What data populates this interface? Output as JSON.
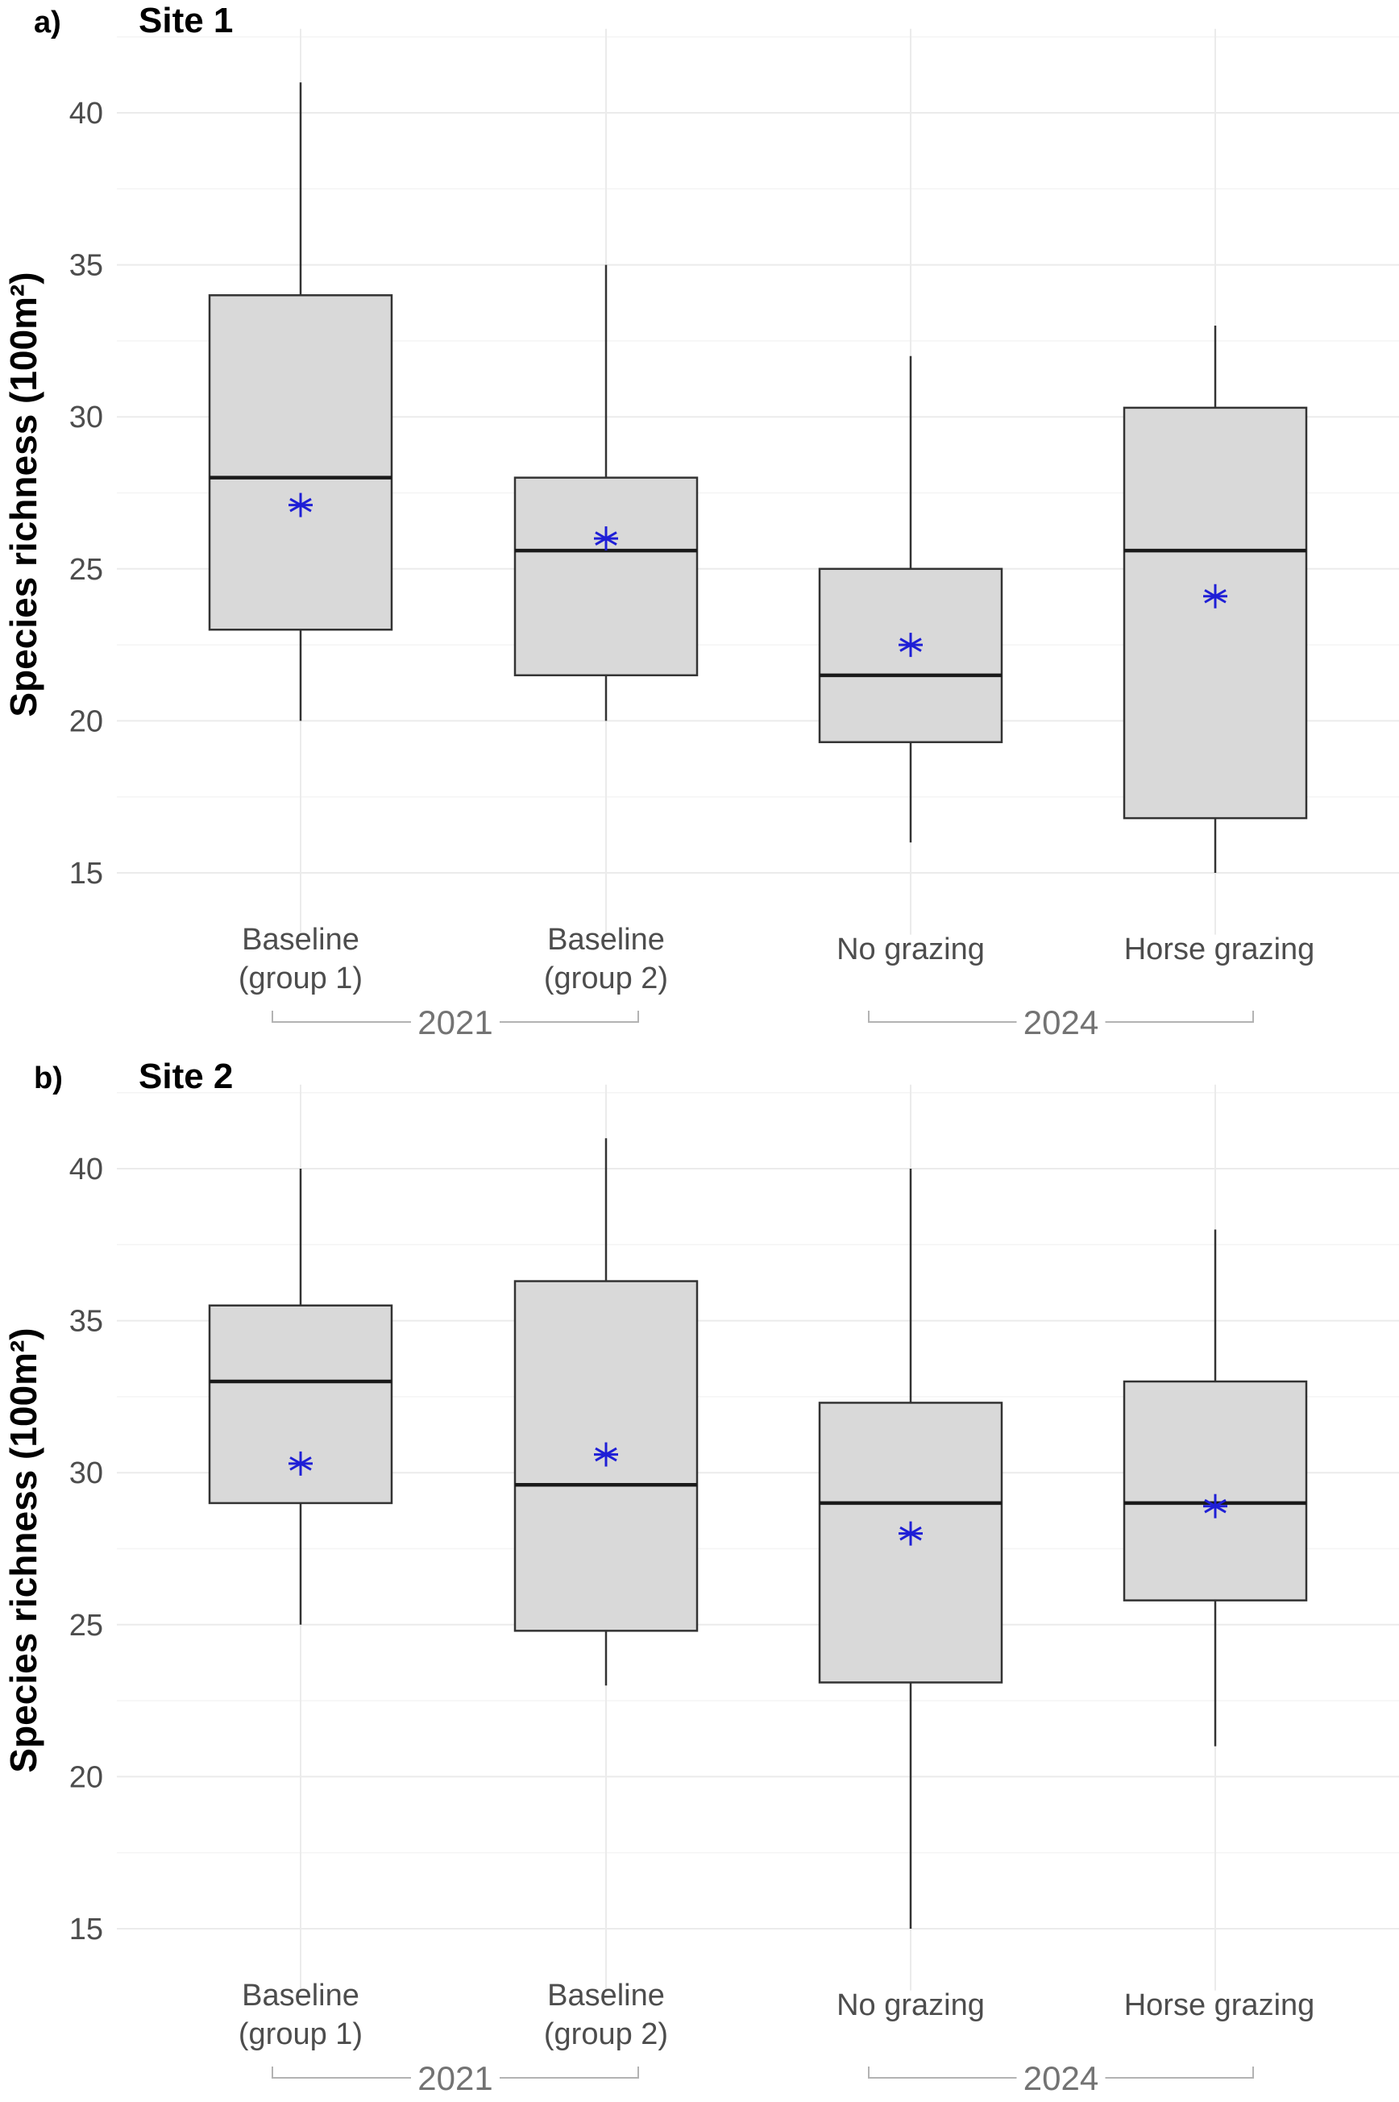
{
  "chart_data": [
    {
      "type": "box",
      "panel_label": "a)",
      "title": "Site 1",
      "ylabel": "Species richness (100m²)",
      "xlabel": "",
      "ylim": [
        13.5,
        42.5
      ],
      "yticks": [
        15,
        20,
        25,
        30,
        35,
        40
      ],
      "categories": [
        {
          "line1": "Baseline",
          "line2": "(group 1)"
        },
        {
          "line1": "Baseline",
          "line2": "(group 2)"
        },
        {
          "line1": "No grazing",
          "line2": ""
        },
        {
          "line1": "Horse grazing",
          "line2": ""
        }
      ],
      "groups": [
        {
          "label": "2021",
          "from": 0,
          "to": 1
        },
        {
          "label": "2024",
          "from": 2,
          "to": 3
        }
      ],
      "boxes": [
        {
          "min": 20,
          "q1": 23,
          "median": 28,
          "q3": 34,
          "max": 41,
          "mean": 27.1
        },
        {
          "min": 20,
          "q1": 21.5,
          "median": 25.6,
          "q3": 28,
          "max": 35,
          "mean": 26.0
        },
        {
          "min": 16,
          "q1": 19.3,
          "median": 21.5,
          "q3": 25,
          "max": 32,
          "mean": 22.5
        },
        {
          "min": 15,
          "q1": 16.8,
          "median": 25.6,
          "q3": 30.3,
          "max": 33,
          "mean": 24.1
        }
      ],
      "mean_color": "#1f1fd6",
      "box_fill": "#d9d9d9"
    },
    {
      "type": "box",
      "panel_label": "b)",
      "title": "Site 2",
      "ylabel": "Species richness (100m²)",
      "xlabel": "",
      "ylim": [
        13.5,
        42.5
      ],
      "yticks": [
        15,
        20,
        25,
        30,
        35,
        40
      ],
      "categories": [
        {
          "line1": "Baseline",
          "line2": "(group 1)"
        },
        {
          "line1": "Baseline",
          "line2": "(group 2)"
        },
        {
          "line1": "No grazing",
          "line2": ""
        },
        {
          "line1": "Horse grazing",
          "line2": ""
        }
      ],
      "groups": [
        {
          "label": "2021",
          "from": 0,
          "to": 1
        },
        {
          "label": "2024",
          "from": 2,
          "to": 3
        }
      ],
      "boxes": [
        {
          "min": 25,
          "q1": 29,
          "median": 33,
          "q3": 35.5,
          "max": 40,
          "mean": 30.3
        },
        {
          "min": 23,
          "q1": 24.8,
          "median": 29.6,
          "q3": 36.3,
          "max": 41,
          "mean": 30.6
        },
        {
          "min": 15,
          "q1": 23.1,
          "median": 29,
          "q3": 32.3,
          "max": 40,
          "mean": 28
        },
        {
          "min": 21,
          "q1": 25.8,
          "median": 29,
          "q3": 33,
          "max": 38,
          "mean": 28.9
        }
      ],
      "mean_color": "#1f1fd6",
      "box_fill": "#d9d9d9"
    }
  ]
}
